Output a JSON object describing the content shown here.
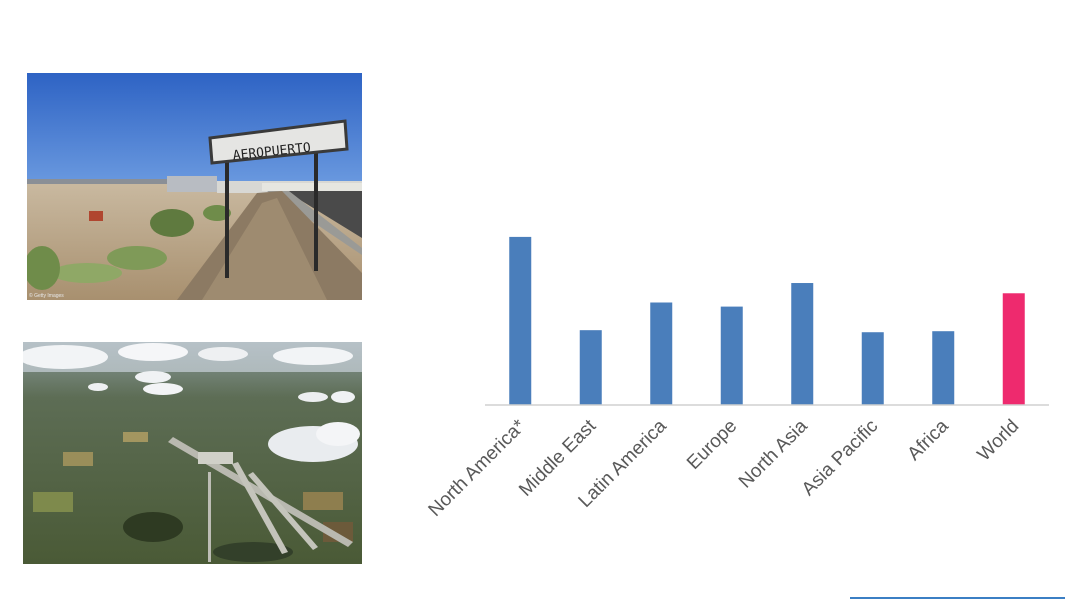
{
  "photos": [
    {
      "name": "airport-sign-photo",
      "credit": "© Getty Images",
      "sign_text": "AEROPUERTO"
    },
    {
      "name": "aerial-airport-photo"
    }
  ],
  "chart_data": {
    "type": "bar",
    "title": "",
    "xlabel": "",
    "ylabel": "",
    "categories": [
      "North America*",
      "Middle East",
      "Latin America",
      "Europe",
      "North Asia",
      "Asia Pacific",
      "Africa",
      "World"
    ],
    "values": [
      0.82,
      0.365,
      0.5,
      0.48,
      0.595,
      0.355,
      0.36,
      0.545
    ],
    "ylim": [
      0,
      1
    ],
    "grid": false,
    "legend": "none",
    "colors": {
      "bar": "#4a7ebb",
      "highlight": "#ee2a6e",
      "axis": "#d0d0d0",
      "label": "#595959"
    },
    "highlight_index": 7
  },
  "footer": {
    "rule_color": "#3b7fc4"
  }
}
